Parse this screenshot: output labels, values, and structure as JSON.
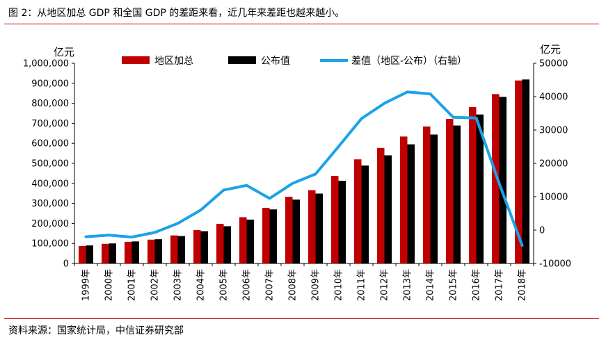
{
  "figure": {
    "title": "图 2：从地区加总 GDP 和全国 GDP 的差距来看，近几年来差距也越来越小。",
    "source": "资料来源：国家统计局，中信证券研究部"
  },
  "colors": {
    "regional_sum": "#c00000",
    "published": "#000000",
    "gap": "#1aa3e8",
    "rule": "#c00000"
  },
  "chart_data": {
    "type": "bar",
    "categories": [
      "1999年",
      "2000年",
      "2001年",
      "2002年",
      "2003年",
      "2004年",
      "2005年",
      "2006年",
      "2007年",
      "2008年",
      "2009年",
      "2010年",
      "2011年",
      "2012年",
      "2013年",
      "2014年",
      "2015年",
      "2016年",
      "2017年",
      "2018年"
    ],
    "series": [
      {
        "name": "地区加总",
        "type": "bar",
        "axis": "left",
        "values": [
          87000,
          98000,
          108000,
          119000,
          140000,
          167000,
          198000,
          231000,
          278000,
          333000,
          366000,
          437000,
          520000,
          577000,
          634000,
          684000,
          722000,
          781000,
          846000,
          914000
        ]
      },
      {
        "name": "公布值",
        "type": "bar",
        "axis": "left",
        "values": [
          90000,
          100000,
          110000,
          121000,
          137000,
          161000,
          186000,
          219000,
          270000,
          319000,
          349000,
          413000,
          489000,
          540000,
          595000,
          644000,
          689000,
          744000,
          832000,
          919000
        ]
      },
      {
        "name": "差值（地区-公布）（右轴）",
        "type": "line",
        "axis": "right",
        "values": [
          -2000,
          -1500,
          -2100,
          -700,
          2000,
          6000,
          12000,
          13400,
          9500,
          14000,
          16800,
          25000,
          33400,
          38000,
          41400,
          40800,
          33800,
          33600,
          14000,
          -4600
        ]
      }
    ],
    "y_left": {
      "label": "亿元",
      "ylim": [
        0,
        1000000
      ],
      "ticks": [
        0,
        100000,
        200000,
        300000,
        400000,
        500000,
        600000,
        700000,
        800000,
        900000,
        1000000
      ],
      "tick_labels": [
        "0",
        "100,000",
        "200,000",
        "300,000",
        "400,000",
        "500,000",
        "600,000",
        "700,000",
        "800,000",
        "900,000",
        "1,000,000"
      ]
    },
    "y_right": {
      "label": "亿元",
      "ylim": [
        -10000,
        50000
      ],
      "ticks": [
        -10000,
        0,
        10000,
        20000,
        30000,
        40000,
        50000
      ],
      "tick_labels": [
        "-10000",
        "0",
        "10000",
        "20000",
        "30000",
        "40000",
        "50000"
      ]
    },
    "legend": {
      "placement": "top",
      "entries": [
        "地区加总",
        "公布值",
        "差值（地区-公布）（右轴）"
      ]
    },
    "grid": false
  }
}
